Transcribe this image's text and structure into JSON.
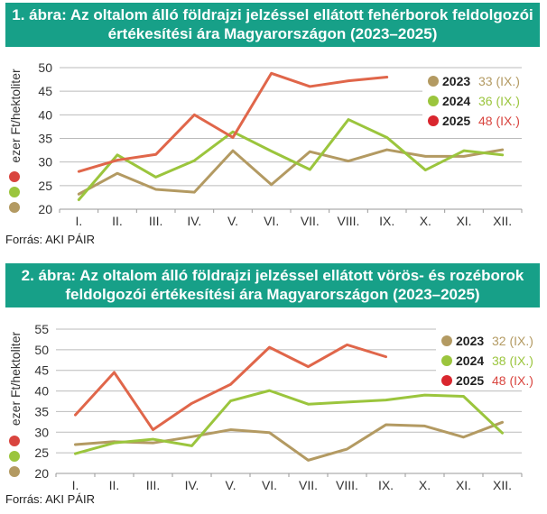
{
  "chart_data": [
    {
      "type": "line",
      "title": "1. ábra: Az oltalom álló földrajzi jelzéssel ellátott fehérborok feldolgozói értékesítési ára Magyarországon (2023–2025)",
      "ylabel": "ezer Ft/hektoliter",
      "xlabel": "",
      "ylim": [
        20,
        50
      ],
      "yticks": [
        20,
        25,
        30,
        35,
        40,
        45,
        50
      ],
      "categories": [
        "I.",
        "II.",
        "III.",
        "IV.",
        "V.",
        "VI.",
        "VII.",
        "VIII.",
        "IX.",
        "X.",
        "XI.",
        "XII."
      ],
      "grid": true,
      "legend": "top-right",
      "series": [
        {
          "name": "2023",
          "note": "33 (IX.)",
          "color": "#b39a62",
          "values": [
            23.2,
            27.6,
            24.2,
            23.6,
            32.4,
            25.2,
            32.2,
            30.2,
            32.6,
            31.2,
            31.2,
            32.6
          ]
        },
        {
          "name": "2024",
          "note": "36 (IX.)",
          "color": "#9bc53d",
          "values": [
            22.0,
            31.5,
            26.8,
            30.3,
            36.4,
            32.3,
            28.4,
            39.0,
            35.2,
            28.3,
            32.4,
            31.5
          ]
        },
        {
          "name": "2025",
          "note": "48 (IX.)",
          "color": "#e0664a",
          "values": [
            28.0,
            30.4,
            31.6,
            40.0,
            35.2,
            48.8,
            46.0,
            47.2,
            48.0,
            null,
            null,
            null
          ]
        }
      ],
      "source": "Forrás: AKI PÁIR"
    },
    {
      "type": "line",
      "title": "2. ábra: Az oltalom álló földrajzi jelzéssel ellátott vörös- és rozéborok feldolgozói értékesítési ára Magyarországon (2023–2025)",
      "ylabel": "ezer Ft/hektoliter",
      "xlabel": "",
      "ylim": [
        20,
        55
      ],
      "yticks": [
        20,
        25,
        30,
        35,
        40,
        45,
        50,
        55
      ],
      "categories": [
        "I.",
        "II.",
        "III.",
        "IV.",
        "V.",
        "VI.",
        "VII.",
        "VIII.",
        "IX.",
        "X.",
        "XI.",
        "XII."
      ],
      "grid": true,
      "legend": "top-right",
      "series": [
        {
          "name": "2023",
          "note": "32 (IX.)",
          "color": "#b39a62",
          "values": [
            27.0,
            27.7,
            27.4,
            28.9,
            30.6,
            29.9,
            23.2,
            25.9,
            31.8,
            31.5,
            28.8,
            32.4
          ]
        },
        {
          "name": "2024",
          "note": "38 (IX.)",
          "color": "#9bc53d",
          "values": [
            24.8,
            27.4,
            28.3,
            26.7,
            37.6,
            40.1,
            36.8,
            37.3,
            37.8,
            39.0,
            38.7,
            29.8
          ]
        },
        {
          "name": "2025",
          "note": "48 (IX.)",
          "color": "#e0664a",
          "values": [
            34.2,
            44.5,
            30.6,
            37.0,
            41.6,
            50.6,
            45.9,
            51.2,
            48.3,
            null,
            null,
            null
          ]
        }
      ],
      "source": "Forrás: AKI PÁIR"
    }
  ]
}
